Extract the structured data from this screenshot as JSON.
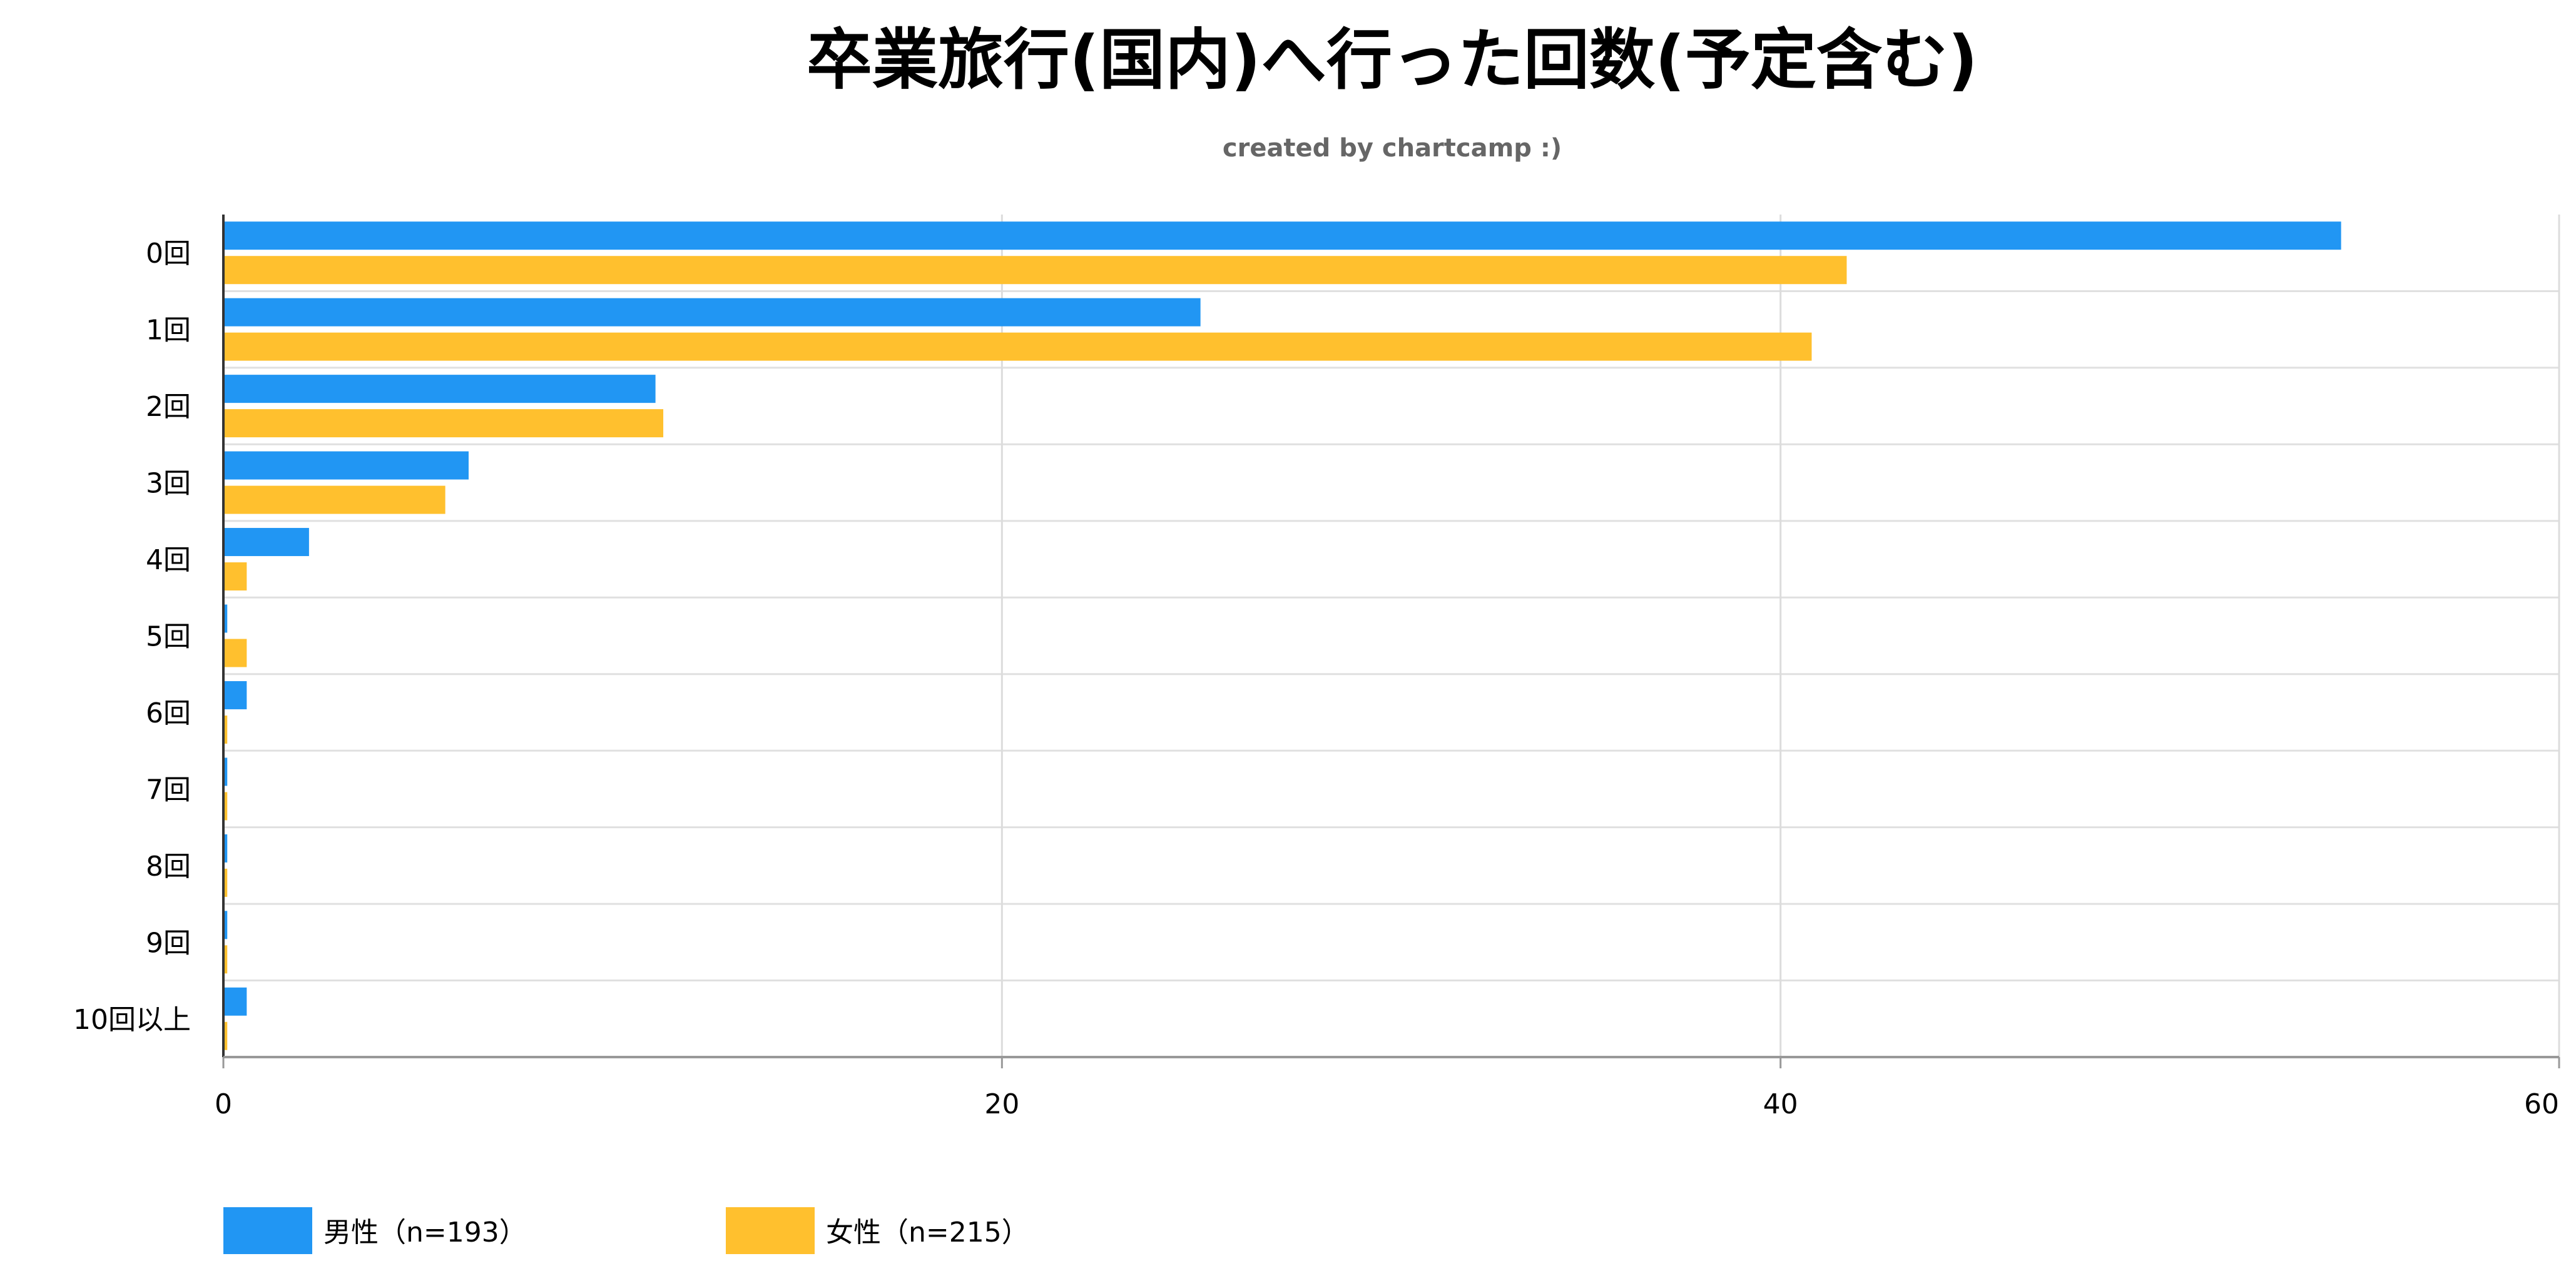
{
  "chart_data": {
    "type": "bar",
    "orientation": "horizontal",
    "title": "卒業旅行(国内)へ行った回数(予定含む)",
    "subtitle": "created by chartcamp :)",
    "categories": [
      "0回",
      "1回",
      "2回",
      "3回",
      "4回",
      "5回",
      "6回",
      "7回",
      "8回",
      "9回",
      "10回以上"
    ],
    "series": [
      {
        "name": "男性（n=193）",
        "color": "#2196F3",
        "values": [
          54.4,
          25.1,
          11.1,
          6.3,
          2.2,
          0.1,
          0.6,
          0.1,
          0.1,
          0.1,
          0.6
        ]
      },
      {
        "name": "女性（n=215）",
        "color": "#FFC02E",
        "values": [
          41.7,
          40.8,
          11.3,
          5.7,
          0.6,
          0.6,
          0.1,
          0.1,
          0.1,
          0.1,
          0.1
        ]
      }
    ],
    "xlim": [
      0,
      60
    ],
    "xticks": [
      0,
      20,
      40,
      60
    ],
    "xlabel": "",
    "ylabel": "",
    "grid": true,
    "legend": "bottom-left"
  }
}
